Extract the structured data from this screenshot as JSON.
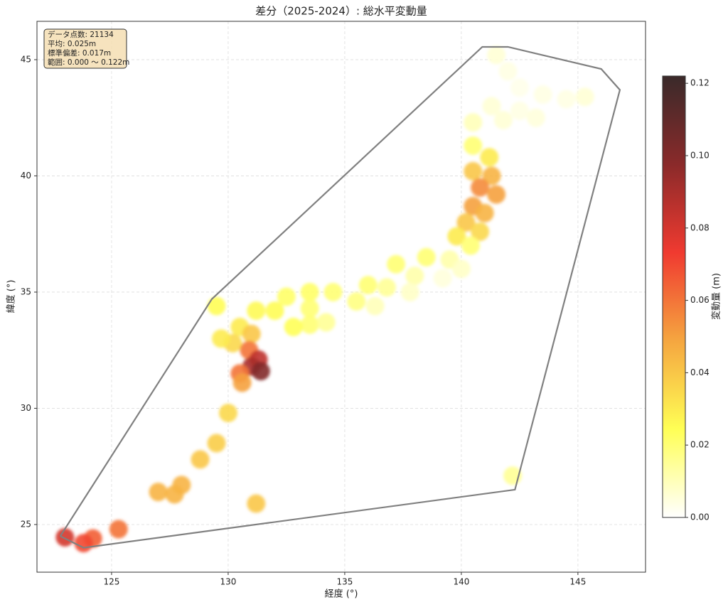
{
  "chart_data": {
    "type": "scatter",
    "title": "差分（2025-2024）: 総水平変動量",
    "x_label": "経度 (°)",
    "y_label": "緯度 (°)",
    "colorbar_label": "変動量 (m)",
    "stats": [
      "データ点数: 21134",
      "平均: 0.025m",
      "標準偏差: 0.017m",
      "範囲: 0.000 ～ 0.122m"
    ],
    "xlim": [
      121.8,
      147.9
    ],
    "ylim": [
      22.95,
      46.65
    ],
    "xticks": [
      125,
      130,
      135,
      140,
      145
    ],
    "yticks": [
      25,
      30,
      35,
      40,
      45
    ],
    "grid": true,
    "clim": [
      0,
      0.122
    ],
    "cticks": [
      {
        "value": 0,
        "label": "0.00"
      },
      {
        "value": 0.02,
        "label": "0.02"
      },
      {
        "value": 0.04,
        "label": "0.04"
      },
      {
        "value": 0.06,
        "label": "0.06"
      },
      {
        "value": 0.08,
        "label": "0.08"
      },
      {
        "value": 0.1,
        "label": "0.10"
      },
      {
        "value": 0.12,
        "label": "0.12"
      }
    ],
    "colormap": [
      "#ffffff",
      "#ffff55",
      "#f5a640",
      "#f03a30",
      "#8a2a2a",
      "#3a2a2a"
    ],
    "hull": {
      "color": "#808080",
      "x": [
        122.8,
        123.8,
        142.3,
        146.8,
        146.0,
        142.0,
        140.9,
        129.3,
        122.8
      ],
      "y": [
        24.5,
        24.0,
        26.5,
        43.7,
        44.6,
        45.55,
        45.55,
        34.7,
        24.5
      ]
    },
    "points": {
      "x": [
        141.5,
        142,
        142.5,
        143.5,
        144.5,
        145.3,
        141.3,
        142.5,
        140.5,
        141.8,
        143.2,
        140.5,
        141.2,
        140.5,
        141.3,
        140.8,
        141.5,
        140.5,
        141,
        140.2,
        140.8,
        139.8,
        140.4,
        139.5,
        140,
        139.2,
        138.5,
        138,
        137.2,
        136.8,
        137.8,
        136,
        135.5,
        136.3,
        134.5,
        133.5,
        133.5,
        132.5,
        132,
        131.2,
        133.5,
        132.8,
        134.2,
        130.5,
        131,
        130.2,
        130.9,
        131.3,
        131,
        130.5,
        130.6,
        131.4,
        129.5,
        129.7,
        130,
        129.5,
        128.8,
        128,
        127.7,
        127,
        131.2,
        142.2,
        124.2,
        123.8,
        125.3,
        123
      ],
      "y": [
        45.2,
        44.5,
        43.8,
        43.5,
        43.3,
        43.4,
        43,
        42.8,
        42.3,
        42.4,
        42.5,
        41.3,
        40.8,
        40.2,
        40,
        39.5,
        39.2,
        38.7,
        38.4,
        38,
        37.6,
        37.4,
        37,
        36.4,
        36,
        35.6,
        36.5,
        35.7,
        36.2,
        35.2,
        35,
        35.3,
        34.6,
        34.4,
        35,
        35,
        34.3,
        34.8,
        34.2,
        34.2,
        33.6,
        33.5,
        33.7,
        33.5,
        33.2,
        32.8,
        32.5,
        32.1,
        31.8,
        31.5,
        31.1,
        31.6,
        34.4,
        33,
        29.8,
        28.5,
        27.8,
        26.7,
        26.3,
        26.4,
        25.9,
        27.1,
        24.4,
        24.2,
        24.8,
        24.45
      ],
      "values": [
        0.006,
        0.004,
        0.003,
        0.004,
        0.004,
        0.006,
        0.006,
        0.004,
        0.01,
        0.006,
        0.005,
        0.02,
        0.03,
        0.04,
        0.045,
        0.055,
        0.05,
        0.05,
        0.045,
        0.04,
        0.035,
        0.03,
        0.02,
        0.012,
        0.008,
        0.005,
        0.02,
        0.012,
        0.02,
        0.015,
        0.008,
        0.02,
        0.018,
        0.01,
        0.02,
        0.022,
        0.02,
        0.022,
        0.025,
        0.026,
        0.02,
        0.024,
        0.015,
        0.03,
        0.04,
        0.035,
        0.06,
        0.085,
        0.09,
        0.06,
        0.05,
        0.1,
        0.025,
        0.03,
        0.035,
        0.038,
        0.04,
        0.045,
        0.045,
        0.045,
        0.04,
        0.015,
        0.065,
        0.07,
        0.06,
        0.08
      ]
    }
  }
}
